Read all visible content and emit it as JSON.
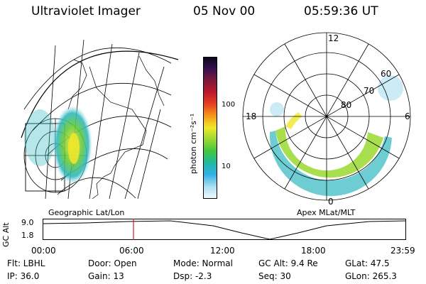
{
  "header": {
    "instrument": "Ultraviolet Imager",
    "date": "05 Nov 00",
    "time": "05:59:36 UT"
  },
  "colorbar": {
    "unit": "photon cm⁻²s⁻¹",
    "ticks": [
      "100",
      "10"
    ],
    "colors": [
      "#0a0520",
      "#3a1050",
      "#801838",
      "#c0182a",
      "#e84020",
      "#f59a18",
      "#f0e82a",
      "#9ad830",
      "#40c840",
      "#20b8a0",
      "#30b0e8",
      "#a8e0f0",
      "#f0f8fc"
    ]
  },
  "panels": {
    "geo_label": "Geographic Lat/Lon",
    "polar_label": "Apex MLat/MLT",
    "polar_mlt_labels": [
      "12",
      "18",
      "6",
      "0"
    ],
    "polar_lat_labels": [
      "60",
      "70",
      "80"
    ]
  },
  "altitude_plot": {
    "axis_label": "GC Alt",
    "ticks": [
      "9.0",
      "1.8"
    ],
    "time_ticks": [
      "00:00",
      "06:00",
      "12:00",
      "18:00",
      "23:59"
    ],
    "current_time_fraction": 0.25,
    "marker_color": "#cc2222"
  },
  "info": {
    "filter": "Flt: LBHL",
    "ip": "IP: 36.0",
    "door": "Door: Open",
    "gain": "Gain: 13",
    "mode": "Mode: Normal",
    "dsp": "Dsp:    -2.3",
    "gc_alt": "GC Alt: 9.4 Re",
    "seq": "Seq: 30",
    "glat": "GLat:   47.5",
    "glon": "GLon: 265.3"
  }
}
